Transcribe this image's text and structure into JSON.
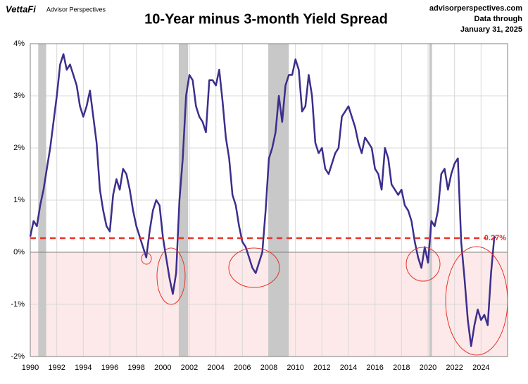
{
  "brand": "VettaFi",
  "brand_sub": "Advisor Perspectives",
  "source": "advisorperspectives.com",
  "note_1": "Data through",
  "note_2": "January 31, 2025",
  "chart_data": {
    "type": "line",
    "title": "10-Year minus 3-month Yield Spread",
    "x": [
      1990.0,
      1990.25,
      1990.5,
      1990.75,
      1991.0,
      1991.25,
      1991.5,
      1991.75,
      1992.0,
      1992.25,
      1992.5,
      1992.75,
      1993.0,
      1993.25,
      1993.5,
      1993.75,
      1994.0,
      1994.25,
      1994.5,
      1994.75,
      1995.0,
      1995.25,
      1995.5,
      1995.75,
      1996.0,
      1996.25,
      1996.5,
      1996.75,
      1997.0,
      1997.25,
      1997.5,
      1997.75,
      1998.0,
      1998.25,
      1998.5,
      1998.75,
      1999.0,
      1999.25,
      1999.5,
      1999.75,
      2000.0,
      2000.25,
      2000.5,
      2000.75,
      2001.0,
      2001.25,
      2001.5,
      2001.75,
      2002.0,
      2002.25,
      2002.5,
      2002.75,
      2003.0,
      2003.25,
      2003.5,
      2003.75,
      2004.0,
      2004.25,
      2004.5,
      2004.75,
      2005.0,
      2005.25,
      2005.5,
      2005.75,
      2006.0,
      2006.25,
      2006.5,
      2006.75,
      2007.0,
      2007.25,
      2007.5,
      2007.75,
      2008.0,
      2008.25,
      2008.5,
      2008.75,
      2009.0,
      2009.25,
      2009.5,
      2009.75,
      2010.0,
      2010.25,
      2010.5,
      2010.75,
      2011.0,
      2011.25,
      2011.5,
      2011.75,
      2012.0,
      2012.25,
      2012.5,
      2012.75,
      2013.0,
      2013.25,
      2013.5,
      2013.75,
      2014.0,
      2014.25,
      2014.5,
      2014.75,
      2015.0,
      2015.25,
      2015.5,
      2015.75,
      2016.0,
      2016.25,
      2016.5,
      2016.75,
      2017.0,
      2017.25,
      2017.5,
      2017.75,
      2018.0,
      2018.25,
      2018.5,
      2018.75,
      2019.0,
      2019.25,
      2019.5,
      2019.75,
      2020.0,
      2020.25,
      2020.5,
      2020.75,
      2021.0,
      2021.25,
      2021.5,
      2021.75,
      2022.0,
      2022.25,
      2022.5,
      2022.75,
      2023.0,
      2023.25,
      2023.5,
      2023.75,
      2024.0,
      2024.25,
      2024.5,
      2024.75,
      2025.0,
      2025.08
    ],
    "series": [
      {
        "name": "10-Year minus 3-month",
        "color": "#3b2e8c",
        "values": [
          0.3,
          0.6,
          0.5,
          0.9,
          1.2,
          1.6,
          2.0,
          2.5,
          3.0,
          3.6,
          3.8,
          3.5,
          3.6,
          3.4,
          3.2,
          2.8,
          2.6,
          2.8,
          3.1,
          2.6,
          2.1,
          1.2,
          0.8,
          0.5,
          0.4,
          1.1,
          1.4,
          1.2,
          1.6,
          1.5,
          1.2,
          0.8,
          0.5,
          0.3,
          0.1,
          -0.1,
          0.4,
          0.8,
          1.0,
          0.9,
          0.3,
          -0.1,
          -0.5,
          -0.8,
          -0.4,
          1.0,
          1.8,
          3.0,
          3.4,
          3.3,
          2.8,
          2.6,
          2.5,
          2.3,
          3.3,
          3.3,
          3.2,
          3.5,
          2.9,
          2.2,
          1.8,
          1.1,
          0.9,
          0.5,
          0.2,
          0.1,
          -0.1,
          -0.3,
          -0.4,
          -0.2,
          0.0,
          0.8,
          1.8,
          2.0,
          2.3,
          3.0,
          2.5,
          3.2,
          3.4,
          3.4,
          3.7,
          3.5,
          2.7,
          2.8,
          3.4,
          3.0,
          2.1,
          1.9,
          2.0,
          1.6,
          1.5,
          1.7,
          1.9,
          2.0,
          2.6,
          2.7,
          2.8,
          2.6,
          2.4,
          2.1,
          1.9,
          2.2,
          2.1,
          2.0,
          1.6,
          1.5,
          1.2,
          2.0,
          1.8,
          1.3,
          1.2,
          1.1,
          1.2,
          0.9,
          0.8,
          0.6,
          0.2,
          -0.1,
          -0.3,
          0.1,
          -0.2,
          0.6,
          0.5,
          0.8,
          1.5,
          1.6,
          1.2,
          1.5,
          1.7,
          1.8,
          0.2,
          -0.5,
          -1.3,
          -1.8,
          -1.4,
          -1.1,
          -1.3,
          -1.2,
          -1.4,
          -0.4,
          0.3,
          0.27
        ]
      }
    ],
    "recessions": [
      [
        1990.6,
        1991.2
      ],
      [
        2001.2,
        2001.9
      ],
      [
        2007.95,
        2009.5
      ],
      [
        2020.1,
        2020.3
      ]
    ],
    "reference_line": {
      "value": 0.27,
      "label": "0.27%",
      "color": "#e8332a"
    },
    "negative_shade": "#fde9e9",
    "xlim": [
      1990,
      2026
    ],
    "xticks": [
      1990,
      1992,
      1994,
      1996,
      1998,
      2000,
      2002,
      2004,
      2006,
      2008,
      2010,
      2012,
      2014,
      2016,
      2018,
      2020,
      2022,
      2024
    ],
    "ylim": [
      -2,
      4
    ],
    "yticks": [
      {
        "value": -2,
        "label": "-2%"
      },
      {
        "value": -1,
        "label": "-1%"
      },
      {
        "value": 0,
        "label": "0%"
      },
      {
        "value": 1,
        "label": "1%"
      },
      {
        "value": 2,
        "label": "2%"
      },
      {
        "value": 3,
        "label": "3%"
      },
      {
        "value": 4,
        "label": "4%"
      }
    ],
    "grid": true
  }
}
